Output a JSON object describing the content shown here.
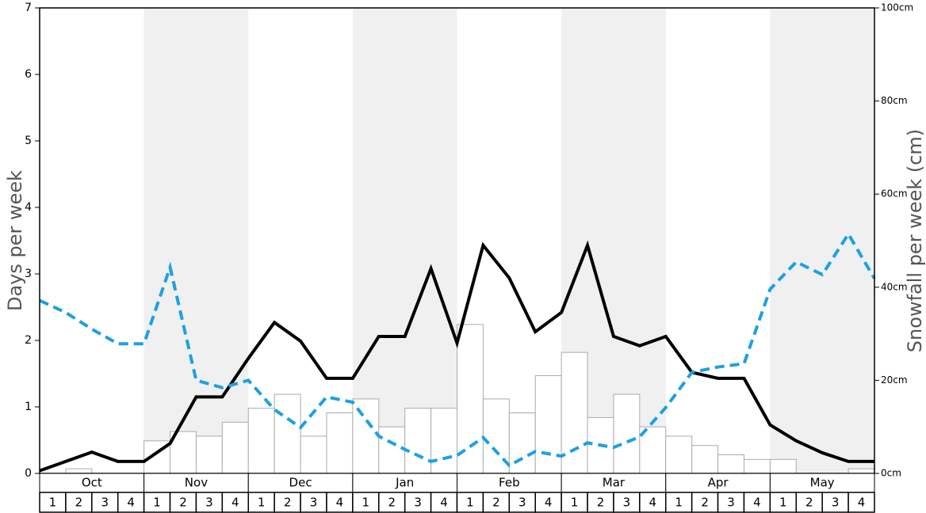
{
  "chart_data": {
    "type": "bar",
    "ylabel": "Days per week",
    "y2label": "Snowfall per week (cm)",
    "months": [
      "Oct",
      "Nov",
      "Dec",
      "Jan",
      "Feb",
      "Mar",
      "Apr",
      "May"
    ],
    "weeks": [
      "1",
      "2",
      "3",
      "4"
    ],
    "ylim": [
      0,
      7
    ],
    "yticks": [
      0,
      1,
      2,
      3,
      4,
      5,
      6,
      7
    ],
    "y2lim": [
      0,
      100
    ],
    "y2ticks": [
      {
        "value": 0,
        "label": "0cm"
      },
      {
        "value": 20,
        "label": "20cm"
      },
      {
        "value": 40,
        "label": "40cm"
      },
      {
        "value": 60,
        "label": "60cm"
      },
      {
        "value": 80,
        "label": "80cm"
      },
      {
        "value": 100,
        "label": "100cm"
      }
    ],
    "bars": {
      "axis": "y2",
      "color": "#ffffff",
      "stroke": "#aaaaaa",
      "values": [
        0,
        1,
        0,
        0,
        7,
        9,
        8,
        11,
        14,
        17,
        8,
        13,
        16,
        10,
        14,
        14,
        32,
        16,
        13,
        21,
        26,
        12,
        17,
        10,
        8,
        6,
        4,
        3,
        3,
        0,
        0,
        1
      ]
    },
    "series": [
      {
        "color": "#000000",
        "dashed": false,
        "values": [
          0.04,
          0.18,
          0.32,
          0.18,
          0.18,
          0.45,
          1.15,
          1.15,
          1.73,
          2.27,
          1.99,
          1.43,
          1.43,
          2.06,
          2.06,
          3.08,
          1.96,
          3.43,
          2.94,
          2.13,
          2.42,
          3.43,
          2.06,
          1.92,
          2.06,
          1.52,
          1.43,
          1.43,
          0.73,
          0.49,
          0.31,
          0.18,
          0.18
        ]
      },
      {
        "color": "#1ba1e2",
        "dashed": true,
        "values": [
          2.6,
          2.42,
          2.17,
          1.95,
          1.95,
          3.1,
          1.4,
          1.29,
          1.4,
          0.96,
          0.69,
          1.15,
          1.07,
          0.56,
          0.36,
          0.18,
          0.27,
          0.54,
          0.12,
          0.33,
          0.26,
          0.46,
          0.39,
          0.55,
          0.99,
          1.52,
          1.6,
          1.65,
          2.77,
          3.18,
          2.99,
          3.6,
          2.93
        ]
      }
    ]
  }
}
